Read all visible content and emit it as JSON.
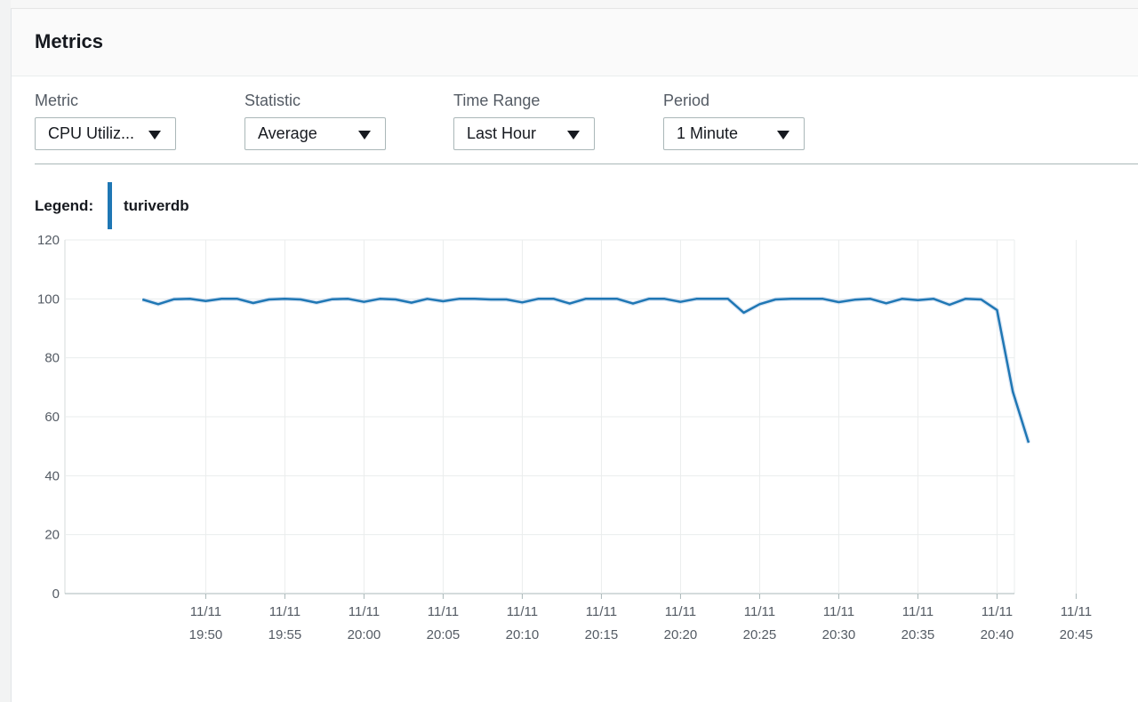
{
  "panel": {
    "title": "Metrics"
  },
  "controls": {
    "metric": {
      "label": "Metric",
      "value": "CPU Utiliz..."
    },
    "statistic": {
      "label": "Statistic",
      "value": "Average"
    },
    "time_range": {
      "label": "Time Range",
      "value": "Last Hour"
    },
    "period": {
      "label": "Period",
      "value": "1 Minute"
    }
  },
  "legend": {
    "label": "Legend:",
    "series_name": "turiverdb",
    "series_color": "#1f77b4"
  },
  "chart_data": {
    "type": "line",
    "ylim": [
      0,
      120
    ],
    "y_ticks": [
      0,
      20,
      40,
      60,
      80,
      100,
      120
    ],
    "x_ticks": [
      {
        "date": "11/11",
        "time": "19:50"
      },
      {
        "date": "11/11",
        "time": "19:55"
      },
      {
        "date": "11/11",
        "time": "20:00"
      },
      {
        "date": "11/11",
        "time": "20:05"
      },
      {
        "date": "11/11",
        "time": "20:10"
      },
      {
        "date": "11/11",
        "time": "20:15"
      },
      {
        "date": "11/11",
        "time": "20:20"
      },
      {
        "date": "11/11",
        "time": "20:25"
      },
      {
        "date": "11/11",
        "time": "20:30"
      },
      {
        "date": "11/11",
        "time": "20:35"
      },
      {
        "date": "11/11",
        "time": "20:40"
      },
      {
        "date": "11/11",
        "time": "20:45"
      }
    ],
    "grid": true,
    "series": [
      {
        "name": "turiverdb",
        "color": "#1f77b4",
        "x": [
          "19:46",
          "19:47",
          "19:48",
          "19:49",
          "19:50",
          "19:51",
          "19:52",
          "19:53",
          "19:54",
          "19:55",
          "19:56",
          "19:57",
          "19:58",
          "19:59",
          "20:00",
          "20:01",
          "20:02",
          "20:03",
          "20:04",
          "20:05",
          "20:06",
          "20:07",
          "20:08",
          "20:09",
          "20:10",
          "20:11",
          "20:12",
          "20:13",
          "20:14",
          "20:15",
          "20:16",
          "20:17",
          "20:18",
          "20:19",
          "20:20",
          "20:21",
          "20:22",
          "20:23",
          "20:24",
          "20:25",
          "20:26",
          "20:27",
          "20:28",
          "20:29",
          "20:30",
          "20:31",
          "20:32",
          "20:33",
          "20:34",
          "20:35",
          "20:36",
          "20:37",
          "20:38",
          "20:39",
          "20:40",
          "20:41",
          "20:42"
        ],
        "values": [
          99.8,
          98.2,
          99.9,
          100,
          99.3,
          100,
          100,
          98.6,
          99.8,
          100,
          99.8,
          98.7,
          99.9,
          100,
          99.0,
          100,
          99.8,
          98.7,
          100,
          99.2,
          100,
          100,
          99.8,
          99.8,
          98.8,
          100,
          100,
          98.4,
          100,
          100,
          100,
          98.4,
          100,
          100,
          99.0,
          100,
          100,
          100,
          95.3,
          98.2,
          99.8,
          100,
          100,
          100,
          98.9,
          99.7,
          100,
          98.5,
          100,
          99.6,
          100,
          98.0,
          100,
          99.8,
          96.2,
          68.5,
          51.2
        ]
      }
    ]
  }
}
